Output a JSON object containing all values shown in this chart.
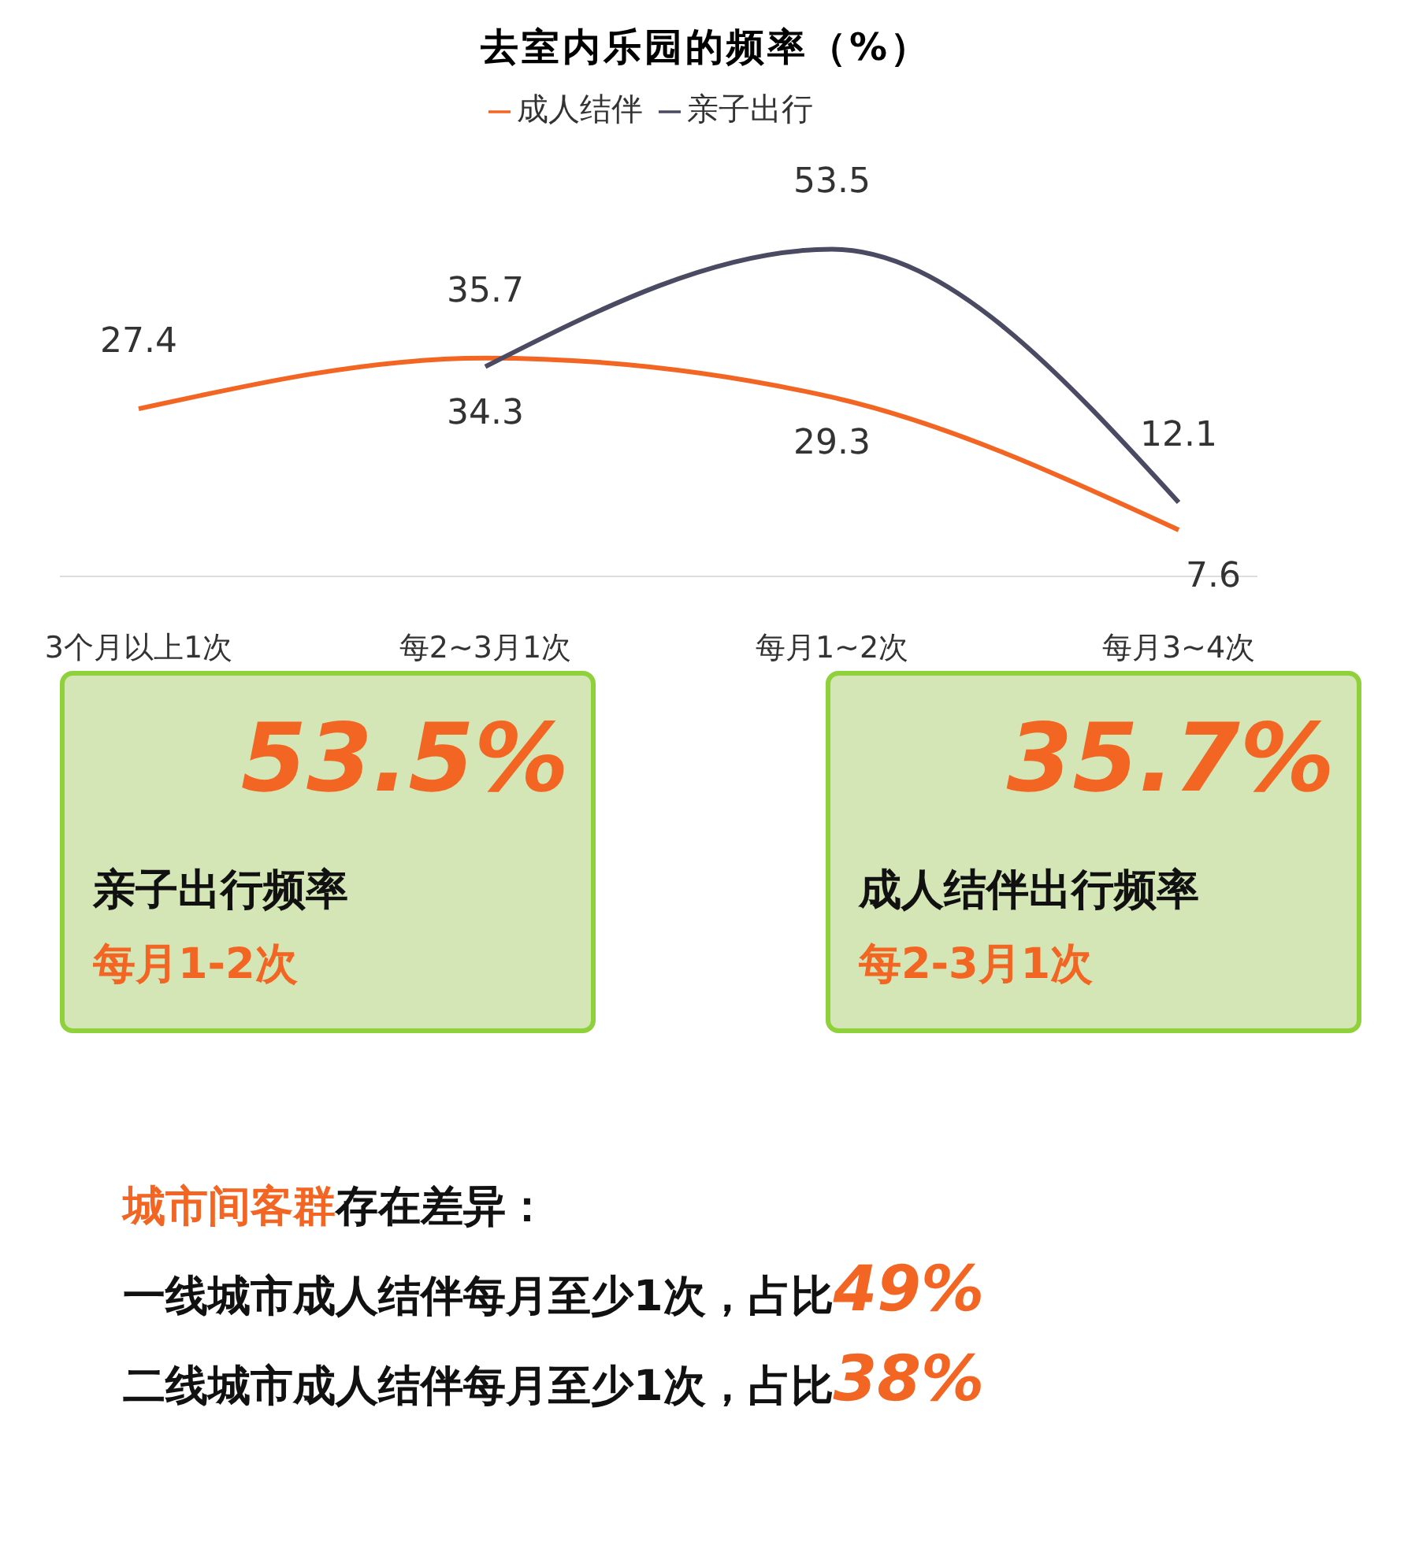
{
  "chart_data": [
    {
      "type": "line",
      "title": "去室内乐园的频率（%）",
      "categories": [
        "3个月以上1次",
        "每2~3月1次",
        "每月1~2次",
        "每月3~4次"
      ],
      "series": [
        {
          "name": "成人结伴",
          "color": "#f26522",
          "values": [
            27.4,
            35.7,
            29.3,
            7.6
          ]
        },
        {
          "name": "亲子出行",
          "color": "#4b4a63",
          "values": [
            null,
            34.3,
            53.5,
            12.1
          ]
        }
      ],
      "tick_labels": "x",
      "data_labels": true,
      "legend": "top",
      "grid": false,
      "marker": "none"
    },
    {
      "type": "other",
      "annotations": [
        "53.5%",
        "亲子出行频率",
        "每月1-2次",
        "35.7%",
        "成人结伴出行频率",
        "每2-3月1次",
        "城市间客群",
        "存在差异：",
        "一线城市成人结伴每月至少1次，占比",
        "49%",
        "二线城市成人结伴每月至少1次，占比",
        "38%"
      ]
    }
  ]
}
